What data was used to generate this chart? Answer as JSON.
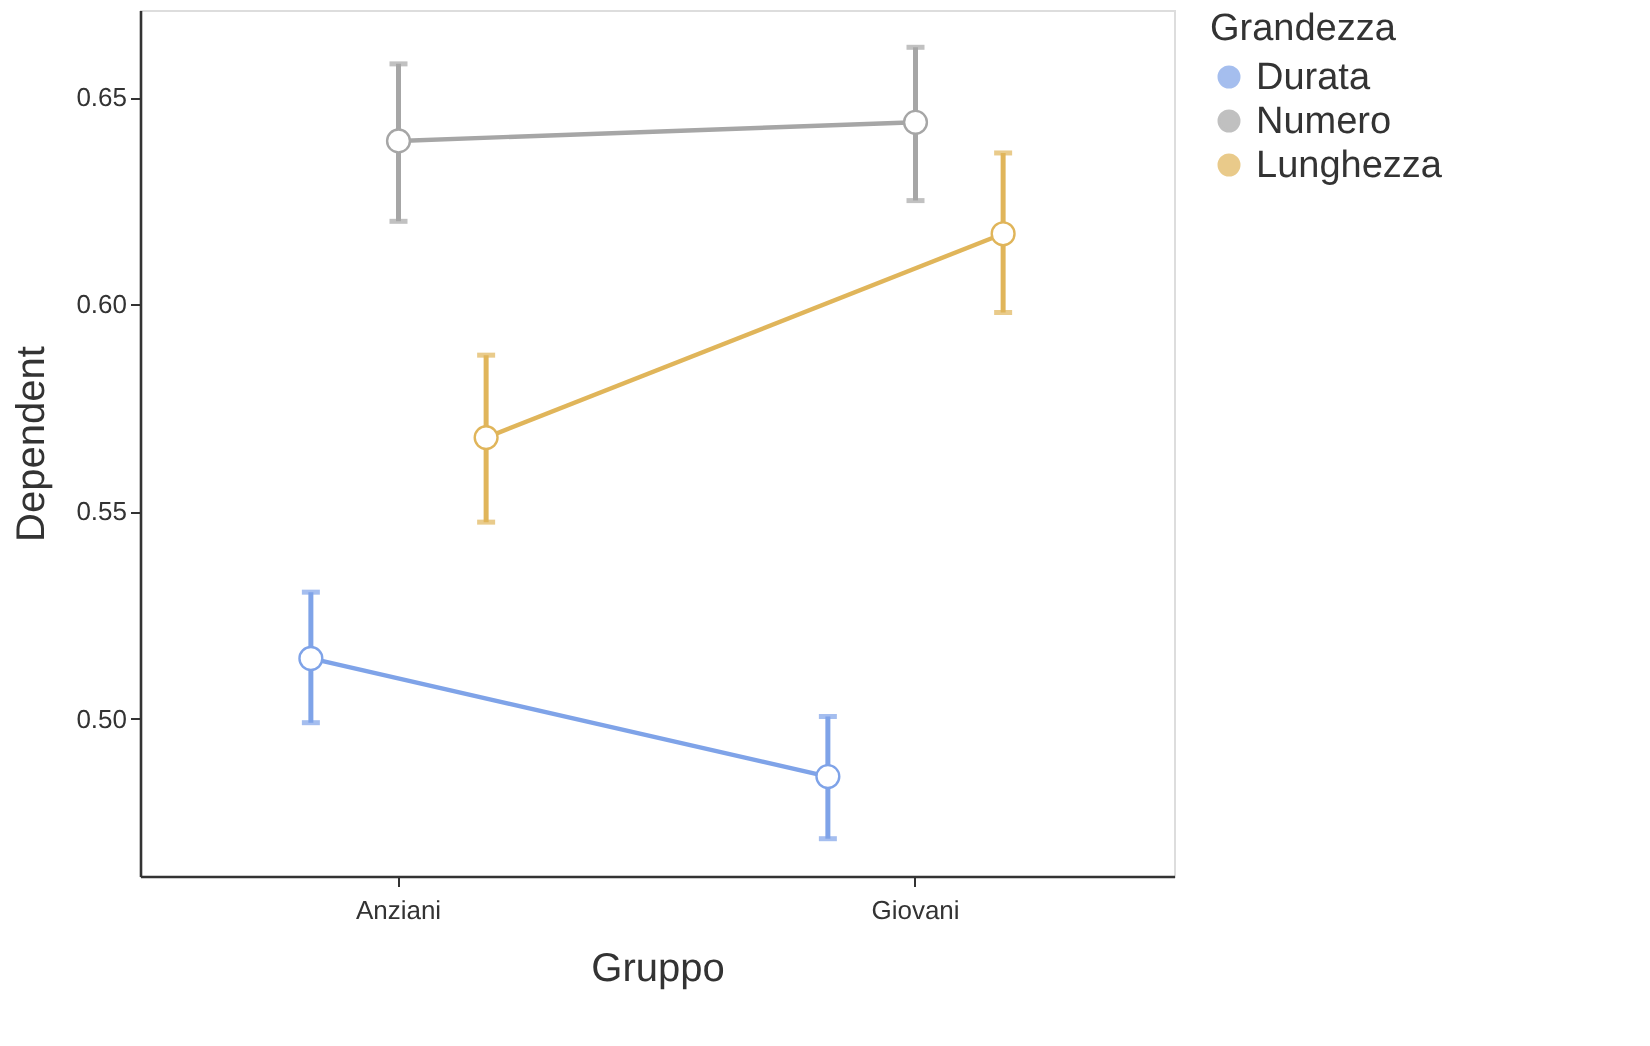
{
  "chart_data": {
    "type": "line",
    "xlabel": "Gruppo",
    "ylabel": "Dependent",
    "legend_title": "Grandezza",
    "categories": [
      "Anziani",
      "Giovani"
    ],
    "series": [
      {
        "name": "Durata",
        "color": "#7fa3e8",
        "values": [
          0.5145,
          0.486
        ],
        "errors": [
          [
            0.499,
            0.5305
          ],
          [
            0.471,
            0.5005
          ]
        ]
      },
      {
        "name": "Numero",
        "color": "#a6a6a6",
        "values": [
          0.6394,
          0.6439
        ],
        "errors": [
          [
            0.62,
            0.658
          ],
          [
            0.625,
            0.662
          ]
        ]
      },
      {
        "name": "Lunghezza",
        "color": "#e0b55a",
        "values": [
          0.5678,
          0.617
        ],
        "errors": [
          [
            0.5474,
            0.5877
          ],
          [
            0.598,
            0.6365
          ]
        ]
      }
    ],
    "ylim": [
      0.462,
      0.671
    ],
    "yticks": [
      {
        "value": 0.5,
        "label": "0.50"
      },
      {
        "value": 0.55,
        "label": "0.55"
      },
      {
        "value": 0.6,
        "label": "0.60"
      },
      {
        "value": 0.65,
        "label": "0.65"
      }
    ],
    "grid": false,
    "legend": "right",
    "marker": "circle",
    "line_style": "solid"
  }
}
